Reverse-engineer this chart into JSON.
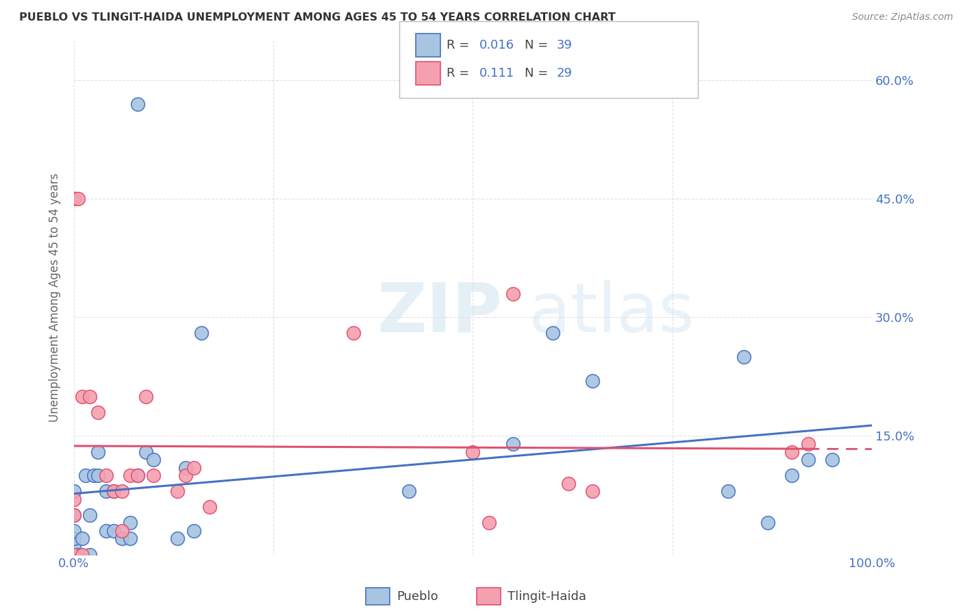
{
  "title": "PUEBLO VS TLINGIT-HAIDA UNEMPLOYMENT AMONG AGES 45 TO 54 YEARS CORRELATION CHART",
  "source": "Source: ZipAtlas.com",
  "ylabel": "Unemployment Among Ages 45 to 54 years",
  "xlim": [
    0.0,
    1.0
  ],
  "ylim": [
    0.0,
    0.65
  ],
  "xticks": [
    0.0,
    0.25,
    0.5,
    0.75,
    1.0
  ],
  "yticks": [
    0.0,
    0.15,
    0.3,
    0.45,
    0.6
  ],
  "pueblo_color": "#a8c4e0",
  "tlingit_color": "#f4a0b0",
  "pueblo_edge_color": "#4472c4",
  "tlingit_edge_color": "#e05070",
  "pueblo_line_color": "#4472c4",
  "tlingit_line_color": "#e05070",
  "pueblo_R": "0.016",
  "pueblo_N": "39",
  "tlingit_R": "0.111",
  "tlingit_N": "29",
  "background_color": "#ffffff",
  "grid_color": "#cccccc",
  "right_axis_color": "#4472c4",
  "ylabel_color": "#666666",
  "title_color": "#333333",
  "source_color": "#888888",
  "pueblo_points_x": [
    0.0,
    0.0,
    0.0,
    0.0,
    0.0,
    0.0,
    0.005,
    0.01,
    0.015,
    0.02,
    0.02,
    0.025,
    0.03,
    0.03,
    0.04,
    0.04,
    0.05,
    0.05,
    0.06,
    0.07,
    0.07,
    0.08,
    0.08,
    0.09,
    0.1,
    0.13,
    0.14,
    0.15,
    0.16,
    0.42,
    0.55,
    0.6,
    0.65,
    0.82,
    0.84,
    0.87,
    0.9,
    0.92,
    0.95
  ],
  "pueblo_points_y": [
    0.0,
    0.01,
    0.02,
    0.03,
    0.05,
    0.08,
    0.0,
    0.02,
    0.1,
    0.0,
    0.05,
    0.1,
    0.1,
    0.13,
    0.03,
    0.08,
    0.03,
    0.08,
    0.02,
    0.02,
    0.04,
    0.57,
    0.1,
    0.13,
    0.12,
    0.02,
    0.11,
    0.03,
    0.28,
    0.08,
    0.14,
    0.28,
    0.22,
    0.08,
    0.25,
    0.04,
    0.1,
    0.12,
    0.12
  ],
  "tlingit_points_x": [
    0.0,
    0.0,
    0.0,
    0.0,
    0.005,
    0.01,
    0.01,
    0.02,
    0.03,
    0.04,
    0.05,
    0.06,
    0.06,
    0.07,
    0.08,
    0.09,
    0.1,
    0.13,
    0.14,
    0.15,
    0.17,
    0.35,
    0.5,
    0.52,
    0.55,
    0.62,
    0.65,
    0.9,
    0.92
  ],
  "tlingit_points_y": [
    0.0,
    0.05,
    0.07,
    0.45,
    0.45,
    0.0,
    0.2,
    0.2,
    0.18,
    0.1,
    0.08,
    0.03,
    0.08,
    0.1,
    0.1,
    0.2,
    0.1,
    0.08,
    0.1,
    0.11,
    0.06,
    0.28,
    0.13,
    0.04,
    0.33,
    0.09,
    0.08,
    0.13,
    0.14
  ]
}
